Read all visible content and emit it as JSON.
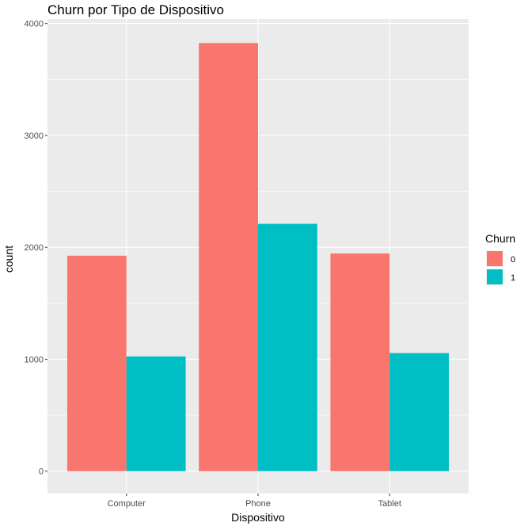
{
  "chart_data": {
    "type": "bar",
    "title": "Churn por Tipo de Dispositivo",
    "xlabel": "Dispositivo",
    "ylabel": "count",
    "categories": [
      "Computer",
      "Phone",
      "Tablet"
    ],
    "series": [
      {
        "name": "0",
        "color": "#F8766D",
        "values": [
          1925,
          3825,
          1945
        ]
      },
      {
        "name": "1",
        "color": "#00BFC4",
        "values": [
          1025,
          2210,
          1055
        ]
      }
    ],
    "ylim": [
      -200,
      4000
    ],
    "yticks": [
      0,
      1000,
      2000,
      3000,
      4000
    ],
    "grid": true,
    "legend": {
      "title": "Churn",
      "placement": "right"
    },
    "colors": {
      "panel": "#EBEBEB",
      "grid": "#FFFFFF"
    }
  }
}
